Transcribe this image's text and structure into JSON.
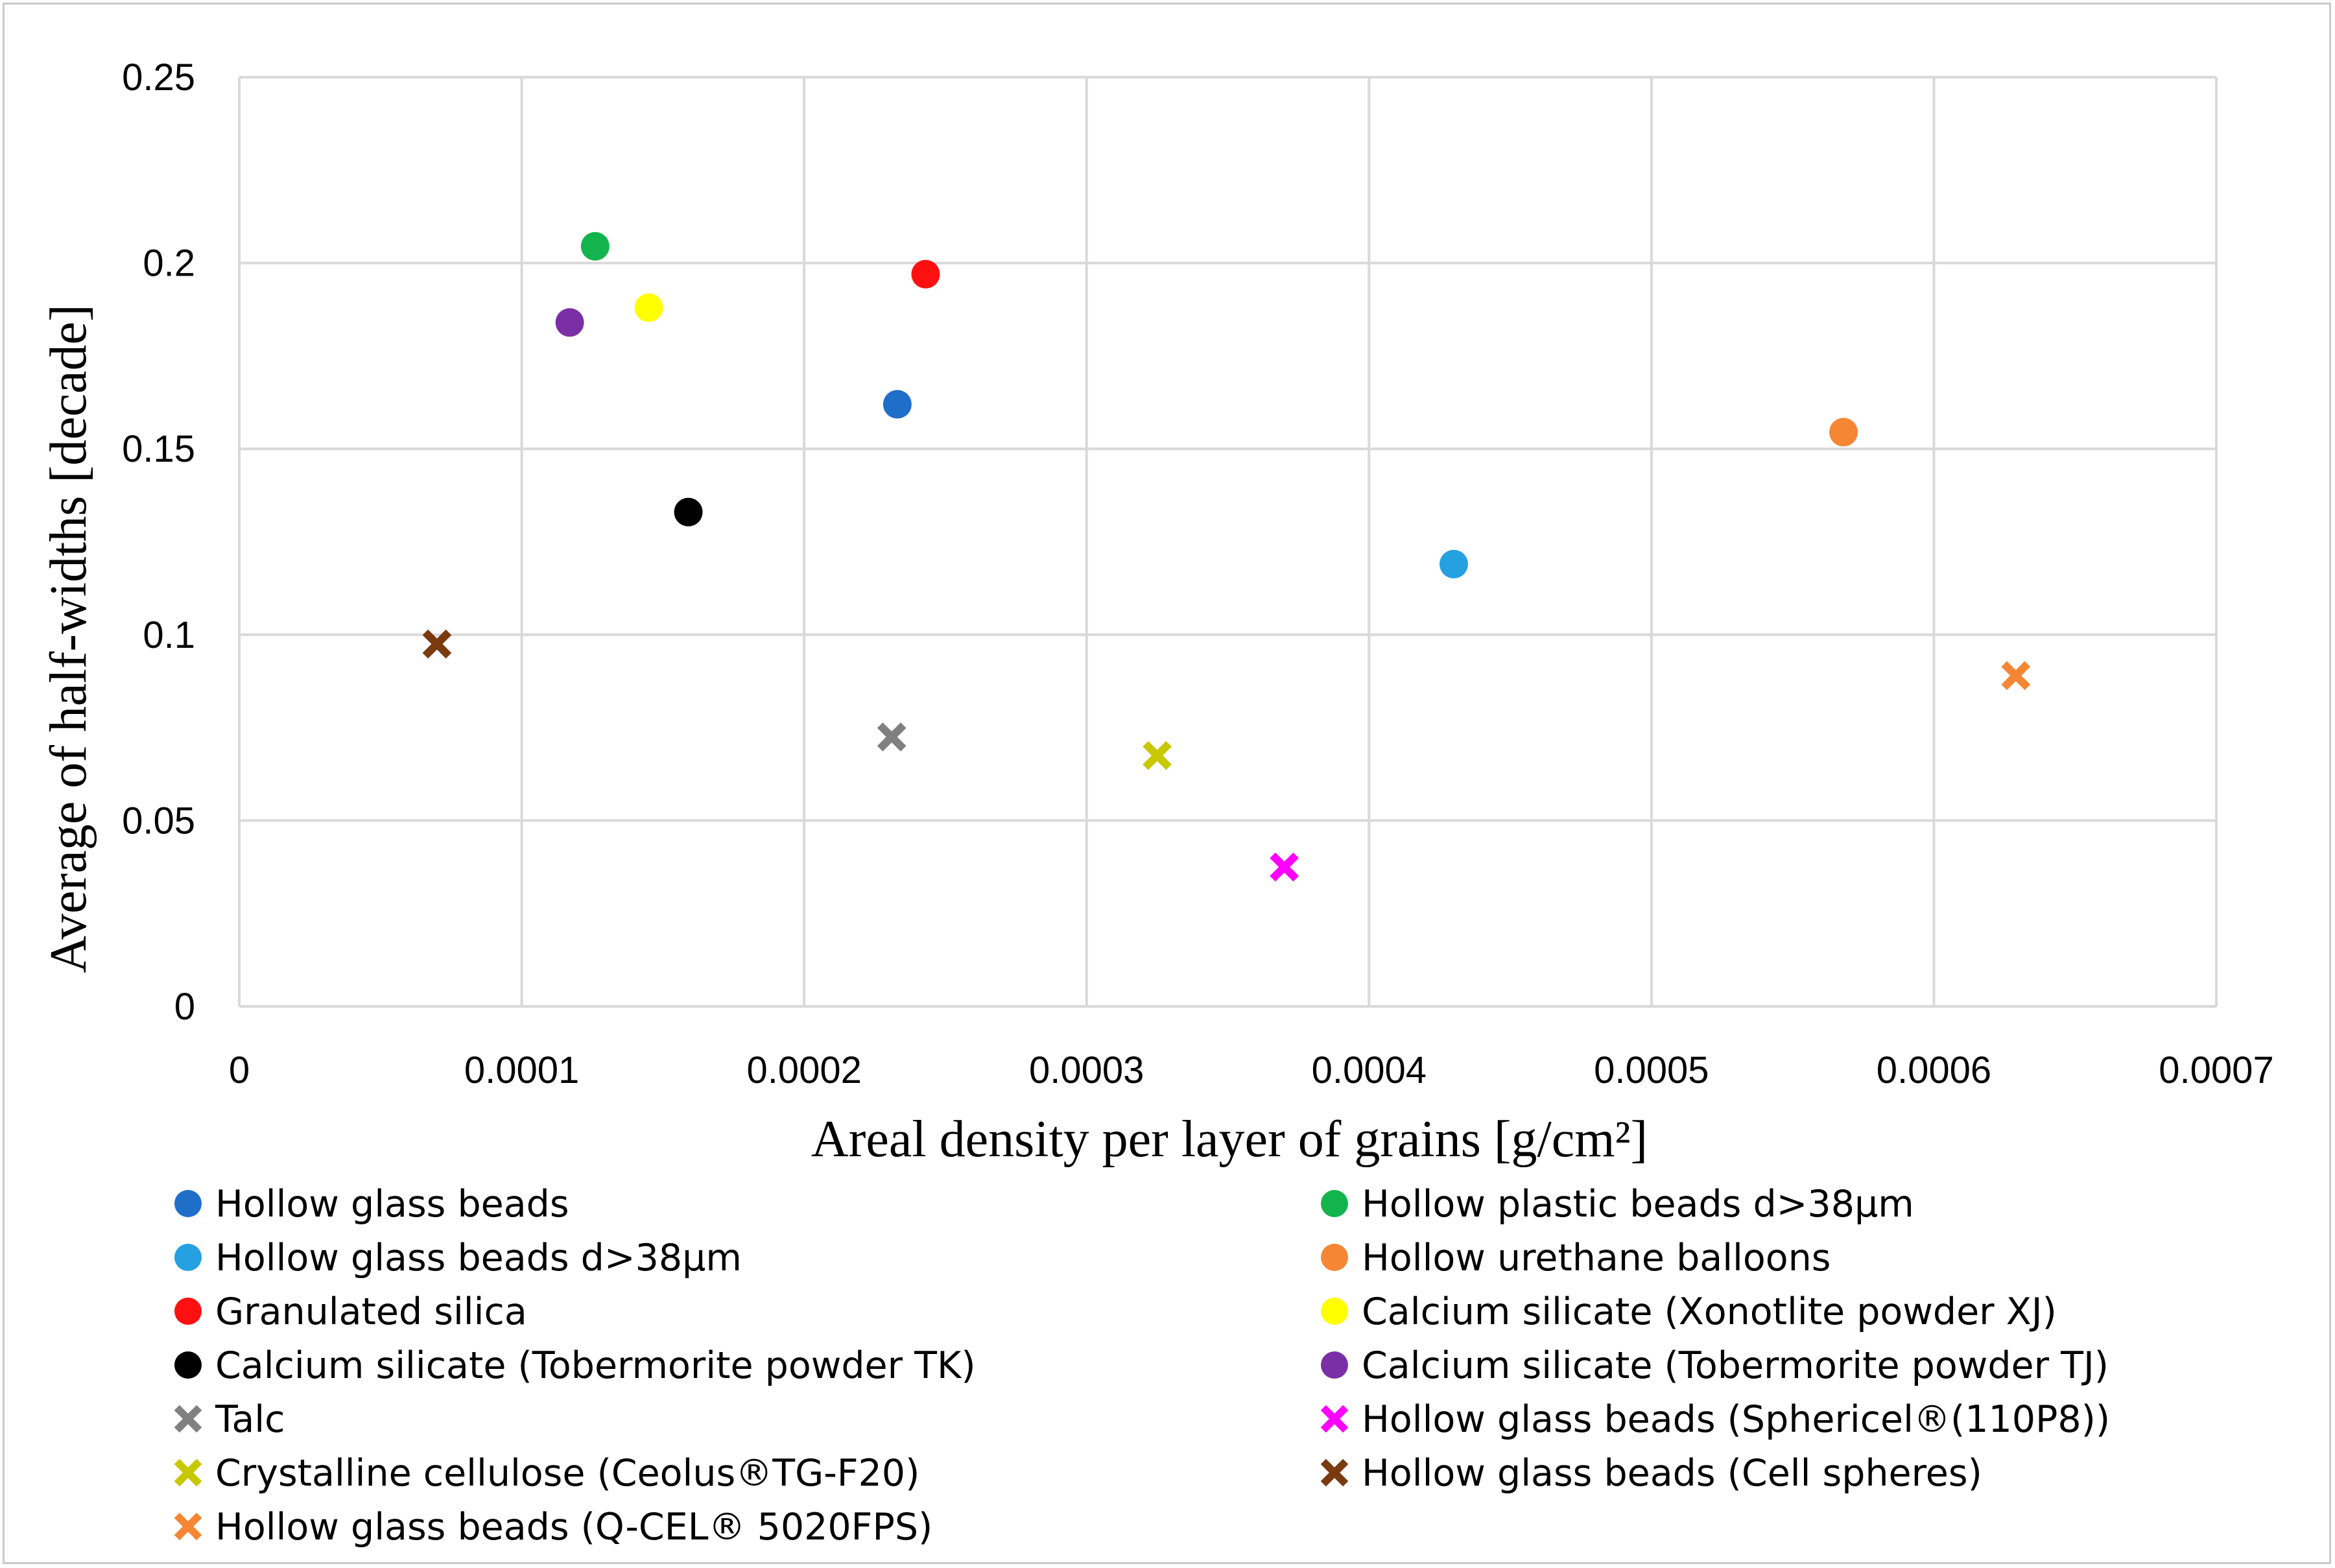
{
  "chart_data": {
    "type": "scatter",
    "title": "",
    "xlabel": "Areal density per layer of grains [g/cm²]",
    "ylabel": "Average of half-widths [decade]",
    "xlim": [
      0,
      0.0007
    ],
    "ylim": [
      0,
      0.25
    ],
    "x_ticks": [
      0,
      0.0001,
      0.0002,
      0.0003,
      0.0004,
      0.0005,
      0.0006,
      0.0007
    ],
    "x_tick_labels": [
      "0",
      "0.0001",
      "0.0002",
      "0.0003",
      "0.0004",
      "0.0005",
      "0.0006",
      "0.0007"
    ],
    "y_ticks": [
      0,
      0.05,
      0.1,
      0.15,
      0.2,
      0.25
    ],
    "y_tick_labels": [
      "0",
      "0.05",
      "0.1",
      "0.15",
      "0.2",
      "0.25"
    ],
    "grid": true,
    "legend_position": "bottom",
    "series": [
      {
        "name": "Hollow glass beads",
        "marker": "circle",
        "color": "#1f6ec8",
        "x": 0.000233,
        "y": 0.162
      },
      {
        "name": "Hollow plastic beads d>38μm",
        "marker": "circle",
        "color": "#13b44d",
        "x": 0.000126,
        "y": 0.2045
      },
      {
        "name": "Hollow glass beads d>38μm",
        "marker": "circle",
        "color": "#25a0e0",
        "x": 0.00043,
        "y": 0.119
      },
      {
        "name": "Hollow urethane balloons",
        "marker": "circle",
        "color": "#f58634",
        "x": 0.000568,
        "y": 0.1545
      },
      {
        "name": "Granulated silica",
        "marker": "circle",
        "color": "#ff1010",
        "x": 0.000243,
        "y": 0.197
      },
      {
        "name": "Calcium silicate (Xonotlite powder XJ)",
        "marker": "circle",
        "color": "#ffff00",
        "x": 0.000145,
        "y": 0.188
      },
      {
        "name": "Calcium silicate (Tobermorite powder TK)",
        "marker": "circle",
        "color": "#000000",
        "x": 0.000159,
        "y": 0.133
      },
      {
        "name": "Calcium silicate (Tobermorite powder TJ)",
        "marker": "circle",
        "color": "#7b2fa6",
        "x": 0.000117,
        "y": 0.184
      },
      {
        "name": "Talc",
        "marker": "x",
        "color": "#808080",
        "x": 0.000231,
        "y": 0.0725
      },
      {
        "name": "Hollow glass beads (Sphericel®(110P8))",
        "marker": "x",
        "color": "#ff00ff",
        "x": 0.00037,
        "y": 0.0375
      },
      {
        "name": "Crystalline cellulose (Ceolus®TG-F20)",
        "marker": "x",
        "color": "#c8c800",
        "x": 0.000325,
        "y": 0.0675
      },
      {
        "name": "Hollow glass beads (Cell spheres)",
        "marker": "x",
        "color": "#7a3a10",
        "x": 7e-05,
        "y": 0.0975
      },
      {
        "name": "Hollow glass beads (Q-CEL® 5020FPS)",
        "marker": "x",
        "color": "#f58634",
        "x": 0.000629,
        "y": 0.089
      }
    ]
  }
}
